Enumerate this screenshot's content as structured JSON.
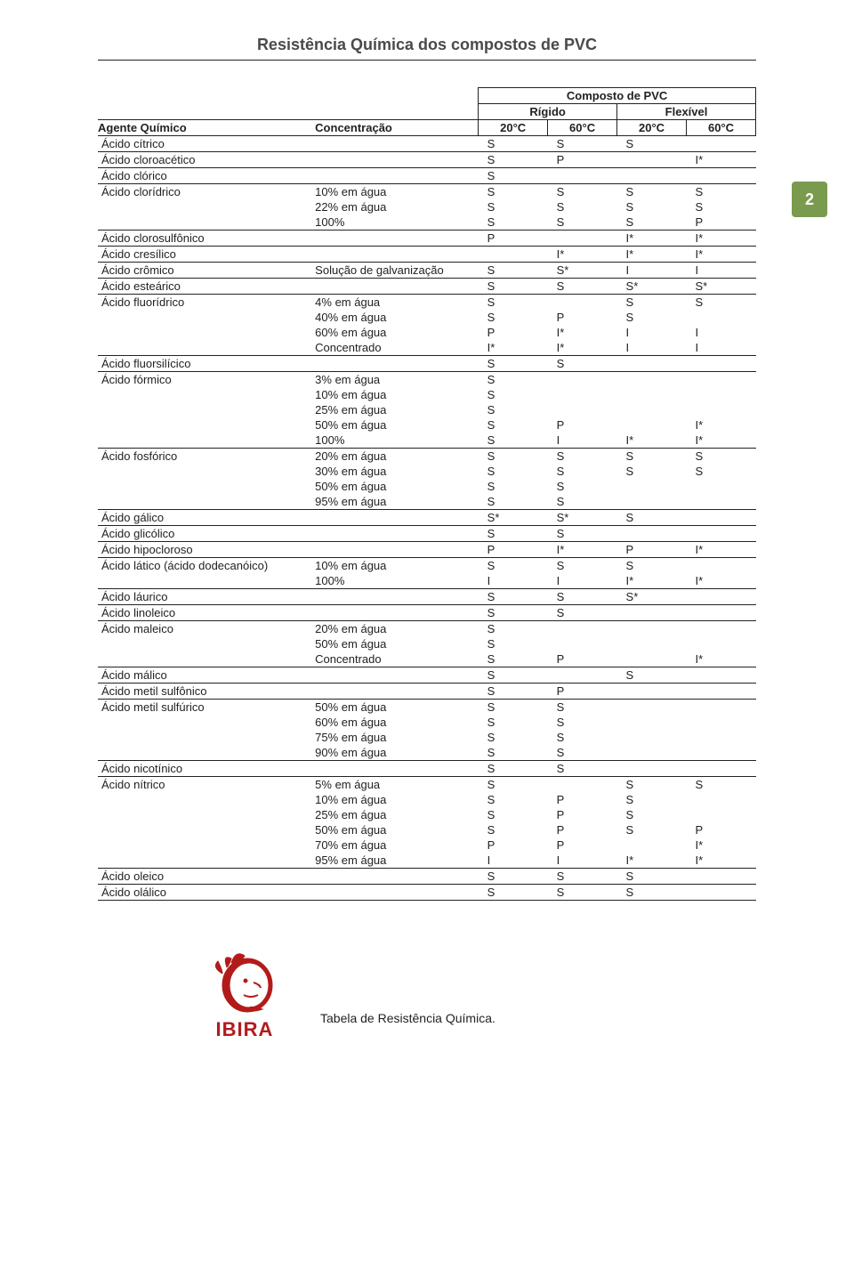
{
  "title": "Resistência Química dos compostos de PVC",
  "header": {
    "compound": "Composto de PVC",
    "rigid": "Rígido",
    "flex": "Flexível",
    "agent": "Agente Químico",
    "conc": "Concentração",
    "t20": "20°C",
    "t60": "60°C"
  },
  "page_number": "2",
  "footer": {
    "brand": "IBIRA",
    "caption": "Tabela de Resistência Química."
  },
  "colors": {
    "badge_bg": "#7a9a4e",
    "logo_red": "#b31b1b"
  },
  "sections": [
    {
      "rows": [
        {
          "a": "Ácido cítrico",
          "c": "",
          "v": [
            "S",
            "S",
            "S",
            ""
          ]
        }
      ]
    },
    {
      "rows": [
        {
          "a": "Ácido cloroacético",
          "c": "",
          "v": [
            "S",
            "P",
            "",
            "I*"
          ]
        }
      ]
    },
    {
      "rows": [
        {
          "a": "Ácido clórico",
          "c": "",
          "v": [
            "S",
            "",
            "",
            ""
          ]
        }
      ]
    },
    {
      "rows": [
        {
          "a": "Ácido clorídrico",
          "c": "10% em água",
          "v": [
            "S",
            "S",
            "S",
            "S"
          ]
        },
        {
          "a": "",
          "c": "22% em água",
          "v": [
            "S",
            "S",
            "S",
            "S"
          ]
        },
        {
          "a": "",
          "c": "100%",
          "v": [
            "S",
            "S",
            "S",
            "P"
          ]
        }
      ]
    },
    {
      "rows": [
        {
          "a": "Ácido clorosulfônico",
          "c": "",
          "v": [
            "P",
            "",
            "I*",
            "I*"
          ]
        }
      ]
    },
    {
      "rows": [
        {
          "a": "Ácido cresílico",
          "c": "",
          "v": [
            "",
            "I*",
            "I*",
            "I*"
          ]
        }
      ]
    },
    {
      "rows": [
        {
          "a": "Ácido crômico",
          "c": "Solução de galvanização",
          "v": [
            "S",
            "S*",
            "I",
            "I"
          ]
        }
      ]
    },
    {
      "rows": [
        {
          "a": "Ácido esteárico",
          "c": "",
          "v": [
            "S",
            "S",
            "S*",
            "S*"
          ]
        }
      ]
    },
    {
      "rows": [
        {
          "a": "Ácido fluorídrico",
          "c": "4% em água",
          "v": [
            "S",
            "",
            "S",
            "S"
          ]
        },
        {
          "a": "",
          "c": "40% em água",
          "v": [
            "S",
            "P",
            "S",
            ""
          ]
        },
        {
          "a": "",
          "c": "60% em água",
          "v": [
            "P",
            "I*",
            "I",
            "I"
          ]
        },
        {
          "a": "",
          "c": "Concentrado",
          "v": [
            "I*",
            "I*",
            "I",
            "I"
          ]
        }
      ]
    },
    {
      "rows": [
        {
          "a": "Ácido fluorsilícico",
          "c": "",
          "v": [
            "S",
            "S",
            "",
            ""
          ]
        }
      ]
    },
    {
      "rows": [
        {
          "a": "Ácido fórmico",
          "c": "3% em água",
          "v": [
            "S",
            "",
            "",
            ""
          ]
        },
        {
          "a": "",
          "c": "10% em água",
          "v": [
            "S",
            "",
            "",
            ""
          ]
        },
        {
          "a": "",
          "c": "25% em água",
          "v": [
            "S",
            "",
            "",
            ""
          ]
        },
        {
          "a": "",
          "c": "50% em água",
          "v": [
            "S",
            "P",
            "",
            "I*"
          ]
        },
        {
          "a": "",
          "c": "100%",
          "v": [
            "S",
            "I",
            "I*",
            "I*"
          ]
        }
      ]
    },
    {
      "rows": [
        {
          "a": "Ácido fosfórico",
          "c": "20% em água",
          "v": [
            "S",
            "S",
            "S",
            "S"
          ]
        },
        {
          "a": "",
          "c": "30% em água",
          "v": [
            "S",
            "S",
            "S",
            "S"
          ]
        },
        {
          "a": "",
          "c": "50% em água",
          "v": [
            "S",
            "S",
            "",
            ""
          ]
        },
        {
          "a": "",
          "c": "95% em água",
          "v": [
            "S",
            "S",
            "",
            ""
          ]
        }
      ]
    },
    {
      "rows": [
        {
          "a": "Ácido gálico",
          "c": "",
          "v": [
            "S*",
            "S*",
            "S",
            ""
          ]
        }
      ]
    },
    {
      "rows": [
        {
          "a": "Ácido glicólico",
          "c": "",
          "v": [
            "S",
            "S",
            "",
            ""
          ]
        }
      ]
    },
    {
      "rows": [
        {
          "a": "Ácido hipocloroso",
          "c": "",
          "v": [
            "P",
            "I*",
            "P",
            "I*"
          ]
        }
      ]
    },
    {
      "rows": [
        {
          "a": "Ácido lático (ácido dodecanóico)",
          "c": "10% em água",
          "v": [
            "S",
            "S",
            "S",
            ""
          ]
        },
        {
          "a": "",
          "c": "100%",
          "v": [
            "I",
            "I",
            "I*",
            "I*"
          ]
        }
      ]
    },
    {
      "rows": [
        {
          "a": "Ácido láurico",
          "c": "",
          "v": [
            "S",
            "S",
            "S*",
            ""
          ]
        }
      ]
    },
    {
      "rows": [
        {
          "a": "Ácido linoleico",
          "c": "",
          "v": [
            "S",
            "S",
            "",
            ""
          ]
        }
      ]
    },
    {
      "rows": [
        {
          "a": "Ácido maleico",
          "c": "20% em água",
          "v": [
            "S",
            "",
            "",
            ""
          ]
        },
        {
          "a": "",
          "c": "50% em água",
          "v": [
            "S",
            "",
            "",
            ""
          ]
        },
        {
          "a": "",
          "c": "Concentrado",
          "v": [
            "S",
            "P",
            "",
            "I*"
          ]
        }
      ]
    },
    {
      "rows": [
        {
          "a": "Ácido málico",
          "c": "",
          "v": [
            "S",
            "",
            "S",
            ""
          ]
        }
      ]
    },
    {
      "rows": [
        {
          "a": "Ácido metil sulfônico",
          "c": "",
          "v": [
            "S",
            "P",
            "",
            ""
          ]
        }
      ]
    },
    {
      "rows": [
        {
          "a": "Ácido metil sulfúrico",
          "c": "50% em água",
          "v": [
            "S",
            "S",
            "",
            ""
          ]
        },
        {
          "a": "",
          "c": "60% em água",
          "v": [
            "S",
            "S",
            "",
            ""
          ]
        },
        {
          "a": "",
          "c": "75% em água",
          "v": [
            "S",
            "S",
            "",
            ""
          ]
        },
        {
          "a": "",
          "c": "90% em água",
          "v": [
            "S",
            "S",
            "",
            ""
          ]
        }
      ]
    },
    {
      "rows": [
        {
          "a": "Ácido nicotínico",
          "c": "",
          "v": [
            "S",
            "S",
            "",
            ""
          ]
        }
      ]
    },
    {
      "rows": [
        {
          "a": "Ácido nítrico",
          "c": "5% em água",
          "v": [
            "S",
            "",
            "S",
            "S"
          ]
        },
        {
          "a": "",
          "c": "10% em água",
          "v": [
            "S",
            "P",
            "S",
            ""
          ]
        },
        {
          "a": "",
          "c": "25% em água",
          "v": [
            "S",
            "P",
            "S",
            ""
          ]
        },
        {
          "a": "",
          "c": "50% em água",
          "v": [
            "S",
            "P",
            "S",
            "P"
          ]
        },
        {
          "a": "",
          "c": "70% em água",
          "v": [
            "P",
            "P",
            "",
            "I*"
          ]
        },
        {
          "a": "",
          "c": "95% em água",
          "v": [
            "I",
            "I",
            "I*",
            "I*"
          ]
        }
      ]
    },
    {
      "rows": [
        {
          "a": "Ácido oleico",
          "c": "",
          "v": [
            "S",
            "S",
            "S",
            ""
          ]
        }
      ]
    },
    {
      "rows": [
        {
          "a": "Ácido olálico",
          "c": "",
          "v": [
            "S",
            "S",
            "S",
            ""
          ]
        }
      ]
    }
  ]
}
